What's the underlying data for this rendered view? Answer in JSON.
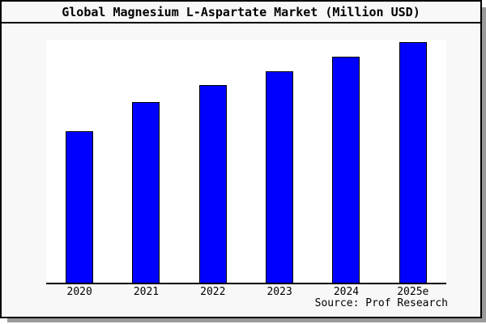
{
  "title": "Global Magnesium L-Aspartate Market (Million USD)",
  "source": "Source: Prof Research",
  "colors": {
    "bar_fill": "#0000ff",
    "bar_border": "#000000",
    "figure_background": "#f8f8f8",
    "plot_background": "#ffffff",
    "frame_border": "#000000",
    "shadow": "#9a9a9a",
    "text": "#000000"
  },
  "chart_data": {
    "type": "bar",
    "title": "Global Magnesium L-Aspartate Market (Million USD)",
    "categories": [
      "2020",
      "2021",
      "2022",
      "2023",
      "2024",
      "2025e"
    ],
    "values": [
      63,
      75,
      82,
      88,
      94,
      100
    ],
    "values_note": "chart shows no y-axis or data labels; values estimated from bar heights, normalized so 2025e = 100",
    "xlabel": "",
    "ylabel": "",
    "ylim": [
      0,
      101
    ],
    "grid": false,
    "legend": false,
    "y_axis_shown": false,
    "source": "Source: Prof Research"
  }
}
